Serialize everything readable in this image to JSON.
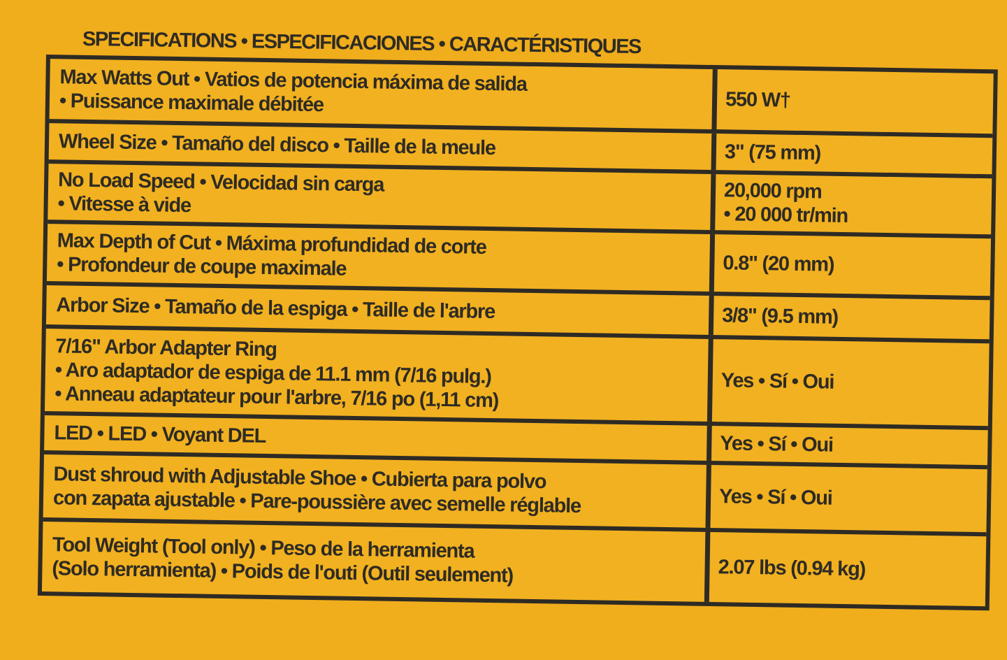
{
  "heading": "SPECIFICATIONS • ESPECIFICACIONES • CARACTÉRISTIQUES",
  "rows": [
    {
      "label": [
        "Max Watts Out • Vatios de potencia máxima de salida",
        "• Puissance maximale débitée"
      ],
      "value": [
        "550 W†"
      ],
      "h": 86
    },
    {
      "label": [
        "Wheel Size • Tamaño del disco • Taille de la meule"
      ],
      "value": [
        "3\" (75 mm)"
      ],
      "h": 52
    },
    {
      "label": [
        "No Load Speed • Velocidad sin carga",
        "• Vitesse à vide"
      ],
      "value": [
        "20,000 rpm",
        "• 20 000 tr/min"
      ],
      "h": 80
    },
    {
      "label": [
        "Max Depth of Cut • Máxima profundidad de corte",
        "• Profondeur de coupe maximale"
      ],
      "value": [
        "0.8\" (20 mm)"
      ],
      "h": 82
    },
    {
      "label": [
        "Arbor Size • Tamaño de la espiga • Taille de l'arbre"
      ],
      "value": [
        "3/8\" (9.5 mm)"
      ],
      "h": 56
    },
    {
      "label": [
        "7/16\" Arbor Adapter Ring",
        "• Aro adaptador de espiga de 11.1 mm (7/16 pulg.)",
        "• Anneau adaptateur pour l'arbre, 7/16 po (1,11 cm)"
      ],
      "value": [
        "Yes • Sí • Oui"
      ],
      "h": 118
    },
    {
      "label": [
        "LED • LED • Voyant DEL"
      ],
      "value": [
        "Yes • Sí • Oui"
      ],
      "h": 50
    },
    {
      "label": [
        "Dust shroud with Adjustable Shoe • Cubierta para polvo",
        "con zapata ajustable • Pare-poussière avec semelle réglable"
      ],
      "value": [
        "Yes • Sí • Oui"
      ],
      "h": 90
    },
    {
      "label": [
        "Tool Weight (Tool only) • Peso de la herramienta",
        "(Solo herramienta) • Poids de l'outi (Outil seulement)"
      ],
      "value": [
        "2.07 lbs (0.94 kg)"
      ],
      "h": 100
    }
  ]
}
